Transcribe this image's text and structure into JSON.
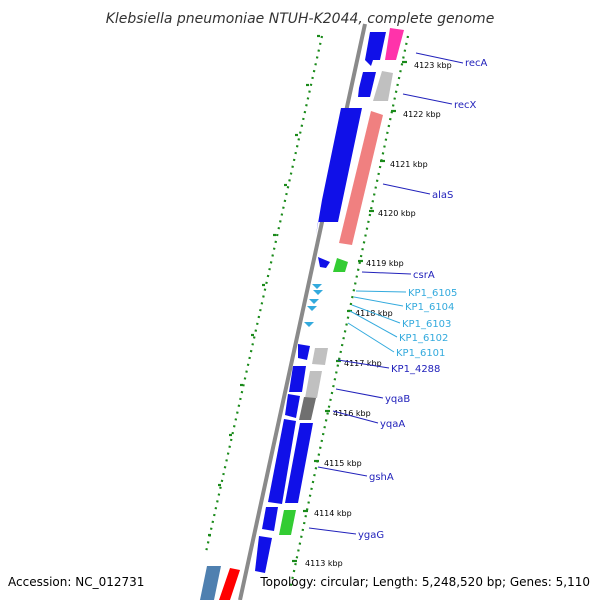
{
  "title": "Klebsiella pneumoniae NTUH-K2044, complete genome",
  "footer": {
    "accession": "Accession: NC_012731",
    "info": "Topology: circular; Length: 5,248,520 bp; Genes: 5,110"
  },
  "colors": {
    "backbone": "#8a8a8a",
    "tick": "#1a8a1a",
    "forward_gene": "#1010e8",
    "rrna_like": "#f08080",
    "gray_gene": "#c0c0c0",
    "dark_gray_gene": "#707070",
    "green_gene": "#33cc33",
    "magenta_gene": "#ff33aa",
    "steel_gene": "#4f80b0",
    "red_gene": "#ff0000",
    "label_dark": "#2222bb",
    "label_light": "#33aadd"
  },
  "kbp_labels": [
    "4123 kbp",
    "4122 kbp",
    "4121 kbp",
    "4120 kbp",
    "4119 kbp",
    "4118 kbp",
    "4117 kbp",
    "4116 kbp",
    "4115 kbp",
    "4114 kbp",
    "4113 kbp"
  ],
  "genes": [
    {
      "name": "recA",
      "color": "dark"
    },
    {
      "name": "recX",
      "color": "dark"
    },
    {
      "name": "alaS",
      "color": "dark"
    },
    {
      "name": "csrA",
      "color": "dark"
    },
    {
      "name": "KP1_6105",
      "color": "light"
    },
    {
      "name": "KP1_6104",
      "color": "light"
    },
    {
      "name": "KP1_6103",
      "color": "light"
    },
    {
      "name": "KP1_6102",
      "color": "light"
    },
    {
      "name": "KP1_6101",
      "color": "light"
    },
    {
      "name": "KP1_4288",
      "color": "dark"
    },
    {
      "name": "yqaB",
      "color": "dark"
    },
    {
      "name": "yqaA",
      "color": "dark"
    },
    {
      "name": "gshA",
      "color": "dark"
    },
    {
      "name": "ygaG",
      "color": "dark"
    }
  ]
}
